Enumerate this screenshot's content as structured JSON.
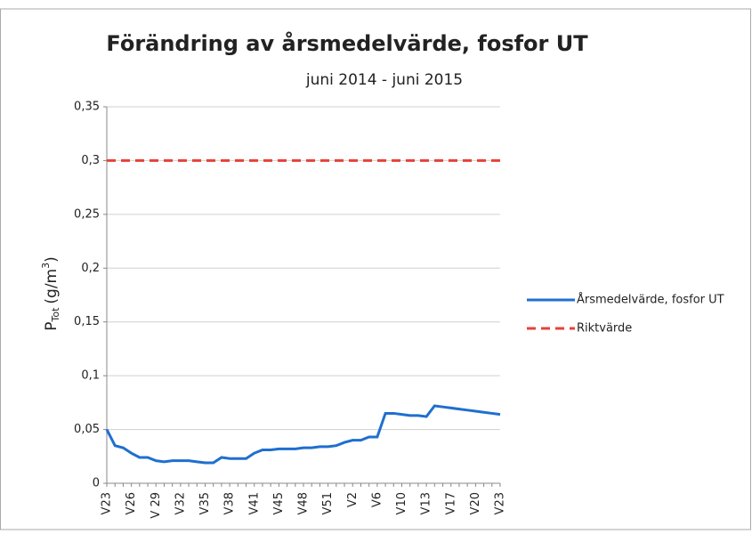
{
  "chart_data": {
    "type": "line",
    "title": "Förändring av årsmedelvärde, fosfor UT",
    "subtitle": "juni 2014 - juni 2015",
    "ylabel": {
      "base": "P",
      "sub": "Tot",
      "unit": "(g/m",
      "sup": "3",
      "close": ")"
    },
    "categories": [
      "V23",
      null,
      null,
      "V26",
      null,
      null,
      "V 29",
      null,
      null,
      "V32",
      null,
      null,
      "V35",
      null,
      null,
      "V38",
      null,
      null,
      "V41",
      null,
      null,
      "V45",
      null,
      null,
      "V48",
      null,
      null,
      "V51",
      null,
      null,
      "V2",
      null,
      null,
      "V6",
      null,
      null,
      "V10",
      null,
      null,
      "V13",
      null,
      null,
      "V17",
      null,
      null,
      "V20",
      null,
      null,
      "V23"
    ],
    "series": [
      {
        "name": "Årsmedelvärde, fosfor UT",
        "color": "#1f6fcf",
        "dash": false,
        "values": [
          0.05,
          0.035,
          0.033,
          0.028,
          0.024,
          0.024,
          0.021,
          0.02,
          0.021,
          0.021,
          0.021,
          0.02,
          0.019,
          0.019,
          0.024,
          0.023,
          0.023,
          0.023,
          0.028,
          0.031,
          0.031,
          0.032,
          0.032,
          0.032,
          0.033,
          0.033,
          0.034,
          0.034,
          0.035,
          0.038,
          0.04,
          0.04,
          0.043,
          0.043,
          0.065,
          0.065,
          0.064,
          0.063,
          0.063,
          0.062,
          0.072,
          0.071,
          0.07,
          0.069,
          0.068,
          0.067,
          0.066,
          0.065,
          0.064
        ]
      },
      {
        "name": "Riktvärde",
        "color": "#e8403a",
        "dash": true,
        "values": [
          0.3,
          0.3,
          0.3,
          0.3,
          0.3,
          0.3,
          0.3,
          0.3,
          0.3,
          0.3,
          0.3,
          0.3,
          0.3,
          0.3,
          0.3,
          0.3,
          0.3,
          0.3,
          0.3,
          0.3,
          0.3,
          0.3,
          0.3,
          0.3,
          0.3,
          0.3,
          0.3,
          0.3,
          0.3,
          0.3,
          0.3,
          0.3,
          0.3,
          0.3,
          0.3,
          0.3,
          0.3,
          0.3,
          0.3,
          0.3,
          0.3,
          0.3,
          0.3,
          0.3,
          0.3,
          0.3,
          0.3,
          0.3,
          0.3
        ]
      }
    ],
    "ylim": [
      0,
      0.35
    ],
    "yticks": [
      0,
      {
        "value": 0.05,
        "label": "0,05"
      },
      {
        "value": 0.1,
        "label": "0,1"
      },
      {
        "value": 0.15,
        "label": "0,15"
      },
      {
        "value": 0.2,
        "label": "0,2"
      },
      {
        "value": 0.25,
        "label": "0,25"
      },
      {
        "value": 0.3,
        "label": "0,3"
      },
      {
        "value": 0.35,
        "label": "0,35"
      }
    ],
    "grid": true,
    "legend": "right"
  }
}
